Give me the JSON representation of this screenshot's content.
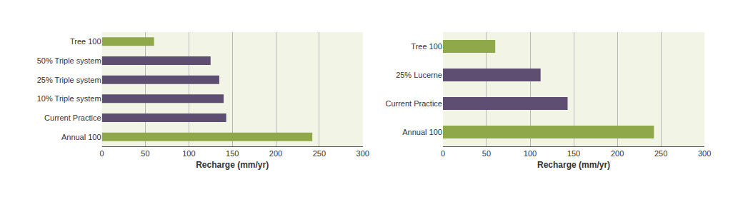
{
  "chart_data": [
    {
      "type": "bar",
      "orientation": "horizontal",
      "categories": [
        "Tree 100",
        "50% Triple system",
        "25% Triple system",
        "10% Triple system",
        "Current Practice",
        "Annual 100"
      ],
      "values": [
        60,
        125,
        135,
        140,
        143,
        242
      ],
      "colors": [
        "#8fa84a",
        "#5e4f72",
        "#5e4f72",
        "#5e4f72",
        "#5e4f72",
        "#8fa84a"
      ],
      "x_label": "Recharge (mm/yr)",
      "xlim": [
        0,
        300
      ],
      "xticks": [
        0,
        50,
        100,
        150,
        200,
        250,
        300
      ],
      "grid": true
    },
    {
      "type": "bar",
      "orientation": "horizontal",
      "categories": [
        "Tree 100",
        "25% Lucerne",
        "Current Practice",
        "Annual 100"
      ],
      "values": [
        60,
        112,
        143,
        242
      ],
      "colors": [
        "#8fa84a",
        "#5e4f72",
        "#5e4f72",
        "#8fa84a"
      ],
      "x_label": "Recharge (mm/yr)",
      "xlim": [
        0,
        300
      ],
      "xticks": [
        0,
        50,
        100,
        150,
        200,
        250,
        300
      ],
      "grid": true
    }
  ]
}
